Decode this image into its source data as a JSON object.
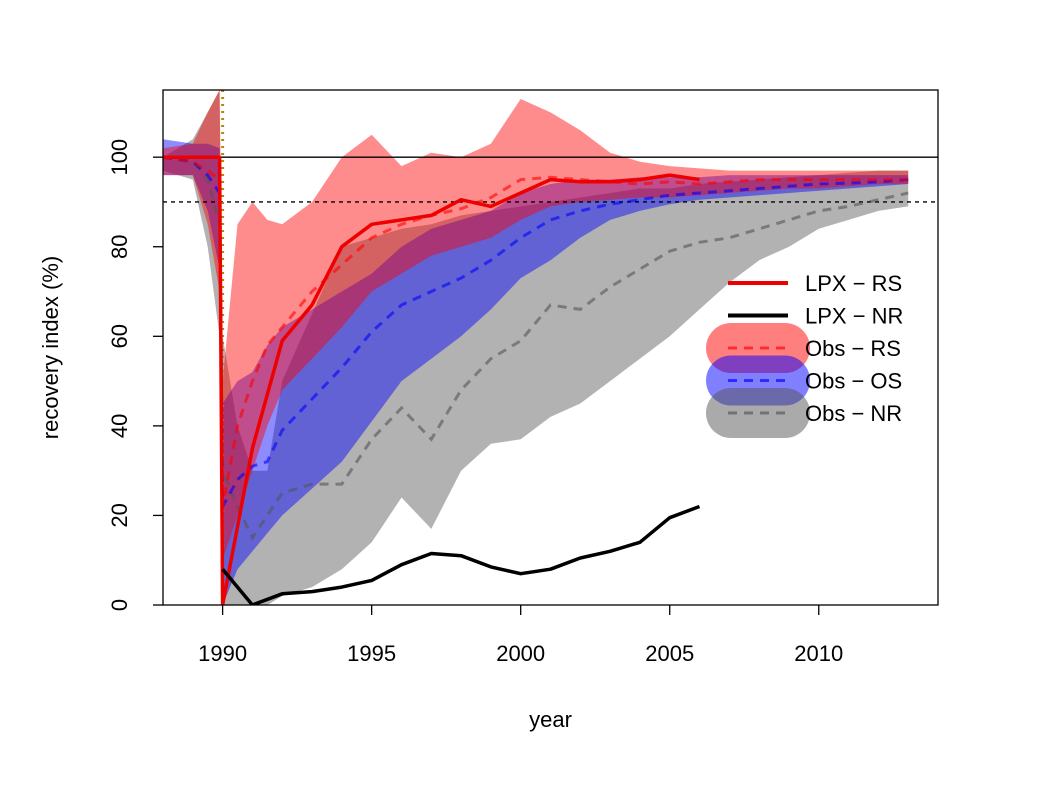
{
  "chart_data": {
    "type": "line",
    "title": "",
    "xlabel": "year",
    "ylabel": "recovery index (%)",
    "xlim": [
      1988,
      2014
    ],
    "ylim": [
      0,
      115
    ],
    "x_ticks": [
      "1990",
      "1995",
      "2000",
      "2005",
      "2010"
    ],
    "y_ticks": [
      "0",
      "20",
      "40",
      "60",
      "80",
      "100"
    ],
    "reference_lines": [
      {
        "value": 100,
        "style": "solid"
      },
      {
        "value": 90,
        "style": "dashed"
      }
    ],
    "disturbance_marker": {
      "year": 1990,
      "style": "dotted",
      "color": "#b8860b"
    },
    "legend_position": "center-right",
    "colors": {
      "lpx_rs": "#ee0000",
      "lpx_nr": "#000000",
      "obs_rs": "#ff0000",
      "obs_os": "#0000ff",
      "obs_nr": "#555555"
    },
    "series": [
      {
        "name": "LPX − RS",
        "kind": "line",
        "color": "#ee0000",
        "x": [
          1988,
          1988.9,
          1989.9,
          1989.95,
          1990,
          1991,
          1992,
          1993,
          1994,
          1995,
          1996,
          1997,
          1998,
          1999,
          2000,
          2001,
          2002,
          2003,
          2004,
          2005,
          2006
        ],
        "y": [
          100,
          100,
          100,
          50,
          0,
          35,
          59,
          67,
          80,
          85,
          86,
          87,
          90.5,
          89,
          92,
          95,
          94.5,
          94.5,
          95,
          96,
          95
        ]
      },
      {
        "name": "LPX − NR",
        "kind": "line",
        "color": "#000000",
        "x": [
          1990,
          1991,
          1992,
          1993,
          1994,
          1995,
          1996,
          1997,
          1998,
          1999,
          2000,
          2001,
          2002,
          2003,
          2004,
          2005,
          2006
        ],
        "y": [
          8,
          0,
          2.5,
          3,
          4,
          5.5,
          9,
          11.5,
          11,
          8.5,
          7,
          8,
          10.5,
          12,
          14,
          19.5,
          22
        ]
      },
      {
        "name": "Obs − NR",
        "kind": "band",
        "color": "#555555",
        "x": [
          1988,
          1989,
          1989.5,
          1989.9,
          1990,
          1990.5,
          1991,
          1991.5,
          1992,
          1993,
          1994,
          1995,
          1996,
          1997,
          1998,
          1999,
          2000,
          2001,
          2002,
          2003,
          2004,
          2005,
          2006,
          2007,
          2008,
          2009,
          2010,
          2011,
          2012,
          2013
        ],
        "mean": [
          100,
          99,
          95,
          85,
          30,
          22,
          15,
          20,
          25,
          27,
          27,
          37,
          44,
          37,
          48,
          55,
          59,
          67,
          66,
          71,
          75,
          79,
          81,
          82,
          84,
          86,
          88,
          89,
          90.5,
          92
        ],
        "lower": [
          97,
          95,
          80,
          60,
          0,
          0,
          0,
          0,
          2,
          4,
          8,
          14,
          24,
          17,
          30,
          36,
          37,
          42,
          45,
          50,
          55,
          60,
          66,
          72,
          77,
          80,
          84,
          86,
          88,
          89
        ],
        "upper": [
          100,
          104,
          110,
          115,
          60,
          40,
          30,
          30,
          50,
          65,
          80,
          82,
          84,
          85,
          87,
          88,
          89,
          90,
          91,
          92,
          93,
          93,
          94,
          94.5,
          95,
          95.5,
          96,
          96.5,
          97,
          97
        ]
      },
      {
        "name": "Obs − OS",
        "kind": "band",
        "color": "#0000ff",
        "x": [
          1988,
          1989,
          1989.5,
          1989.9,
          1990,
          1990.5,
          1991,
          1991.5,
          1992,
          1993,
          1994,
          1995,
          1996,
          1997,
          1998,
          1999,
          2000,
          2001,
          2002,
          2003,
          2004,
          2005,
          2006,
          2007,
          2008,
          2009,
          2010,
          2011,
          2012,
          2013
        ],
        "mean": [
          100,
          99,
          96,
          92,
          22,
          28,
          31,
          32,
          39,
          46,
          53,
          61,
          67,
          70,
          73,
          77,
          82,
          86,
          88,
          89.5,
          90.5,
          91.5,
          92,
          92.5,
          93,
          93.5,
          94,
          94.2,
          94.5,
          95
        ],
        "lower": [
          96,
          96,
          88,
          75,
          0,
          8,
          12,
          16,
          20,
          26,
          32,
          41,
          50,
          55,
          60,
          66,
          73,
          77,
          82,
          86,
          88,
          89.5,
          90.5,
          91,
          91.5,
          92,
          92.5,
          93,
          93.5,
          94
        ],
        "upper": [
          104,
          103,
          103,
          102,
          45,
          50,
          52,
          58,
          62,
          66,
          70,
          74,
          80,
          84,
          86,
          88,
          92,
          94,
          95,
          95,
          95.5,
          95.5,
          95.5,
          96,
          96,
          96,
          96,
          96,
          96,
          96
        ]
      },
      {
        "name": "Obs − RS",
        "kind": "band",
        "color": "#ff0000",
        "x": [
          1988,
          1989,
          1989.5,
          1989.9,
          1990,
          1990.5,
          1991,
          1991.5,
          1992,
          1993,
          1994,
          1995,
          1996,
          1997,
          1998,
          1999,
          2000,
          2001,
          2002,
          2003,
          2004,
          2005,
          2006,
          2007,
          2008,
          2009,
          2010,
          2011,
          2012,
          2013
        ],
        "mean": [
          100,
          99,
          97,
          95,
          22,
          40,
          50,
          58,
          62,
          70,
          76,
          82,
          85,
          87,
          88.5,
          91,
          95,
          95.5,
          95,
          94.5,
          94,
          94.5,
          94,
          94.5,
          95,
          95,
          95,
          95,
          95,
          95
        ],
        "lower": [
          96,
          96,
          85,
          70,
          10,
          20,
          30,
          40,
          48,
          55,
          62,
          70,
          74,
          78,
          80,
          82,
          86,
          89,
          90,
          90.5,
          91,
          91,
          91.5,
          92,
          92.5,
          93,
          93,
          93.5,
          94,
          94
        ],
        "upper": [
          102,
          103,
          110,
          115,
          50,
          85,
          90,
          86,
          85,
          90,
          100,
          105,
          98,
          101,
          100,
          103,
          113,
          110,
          106,
          101,
          99,
          98,
          97.5,
          97,
          97,
          97,
          97,
          97,
          97,
          97
        ]
      }
    ]
  }
}
